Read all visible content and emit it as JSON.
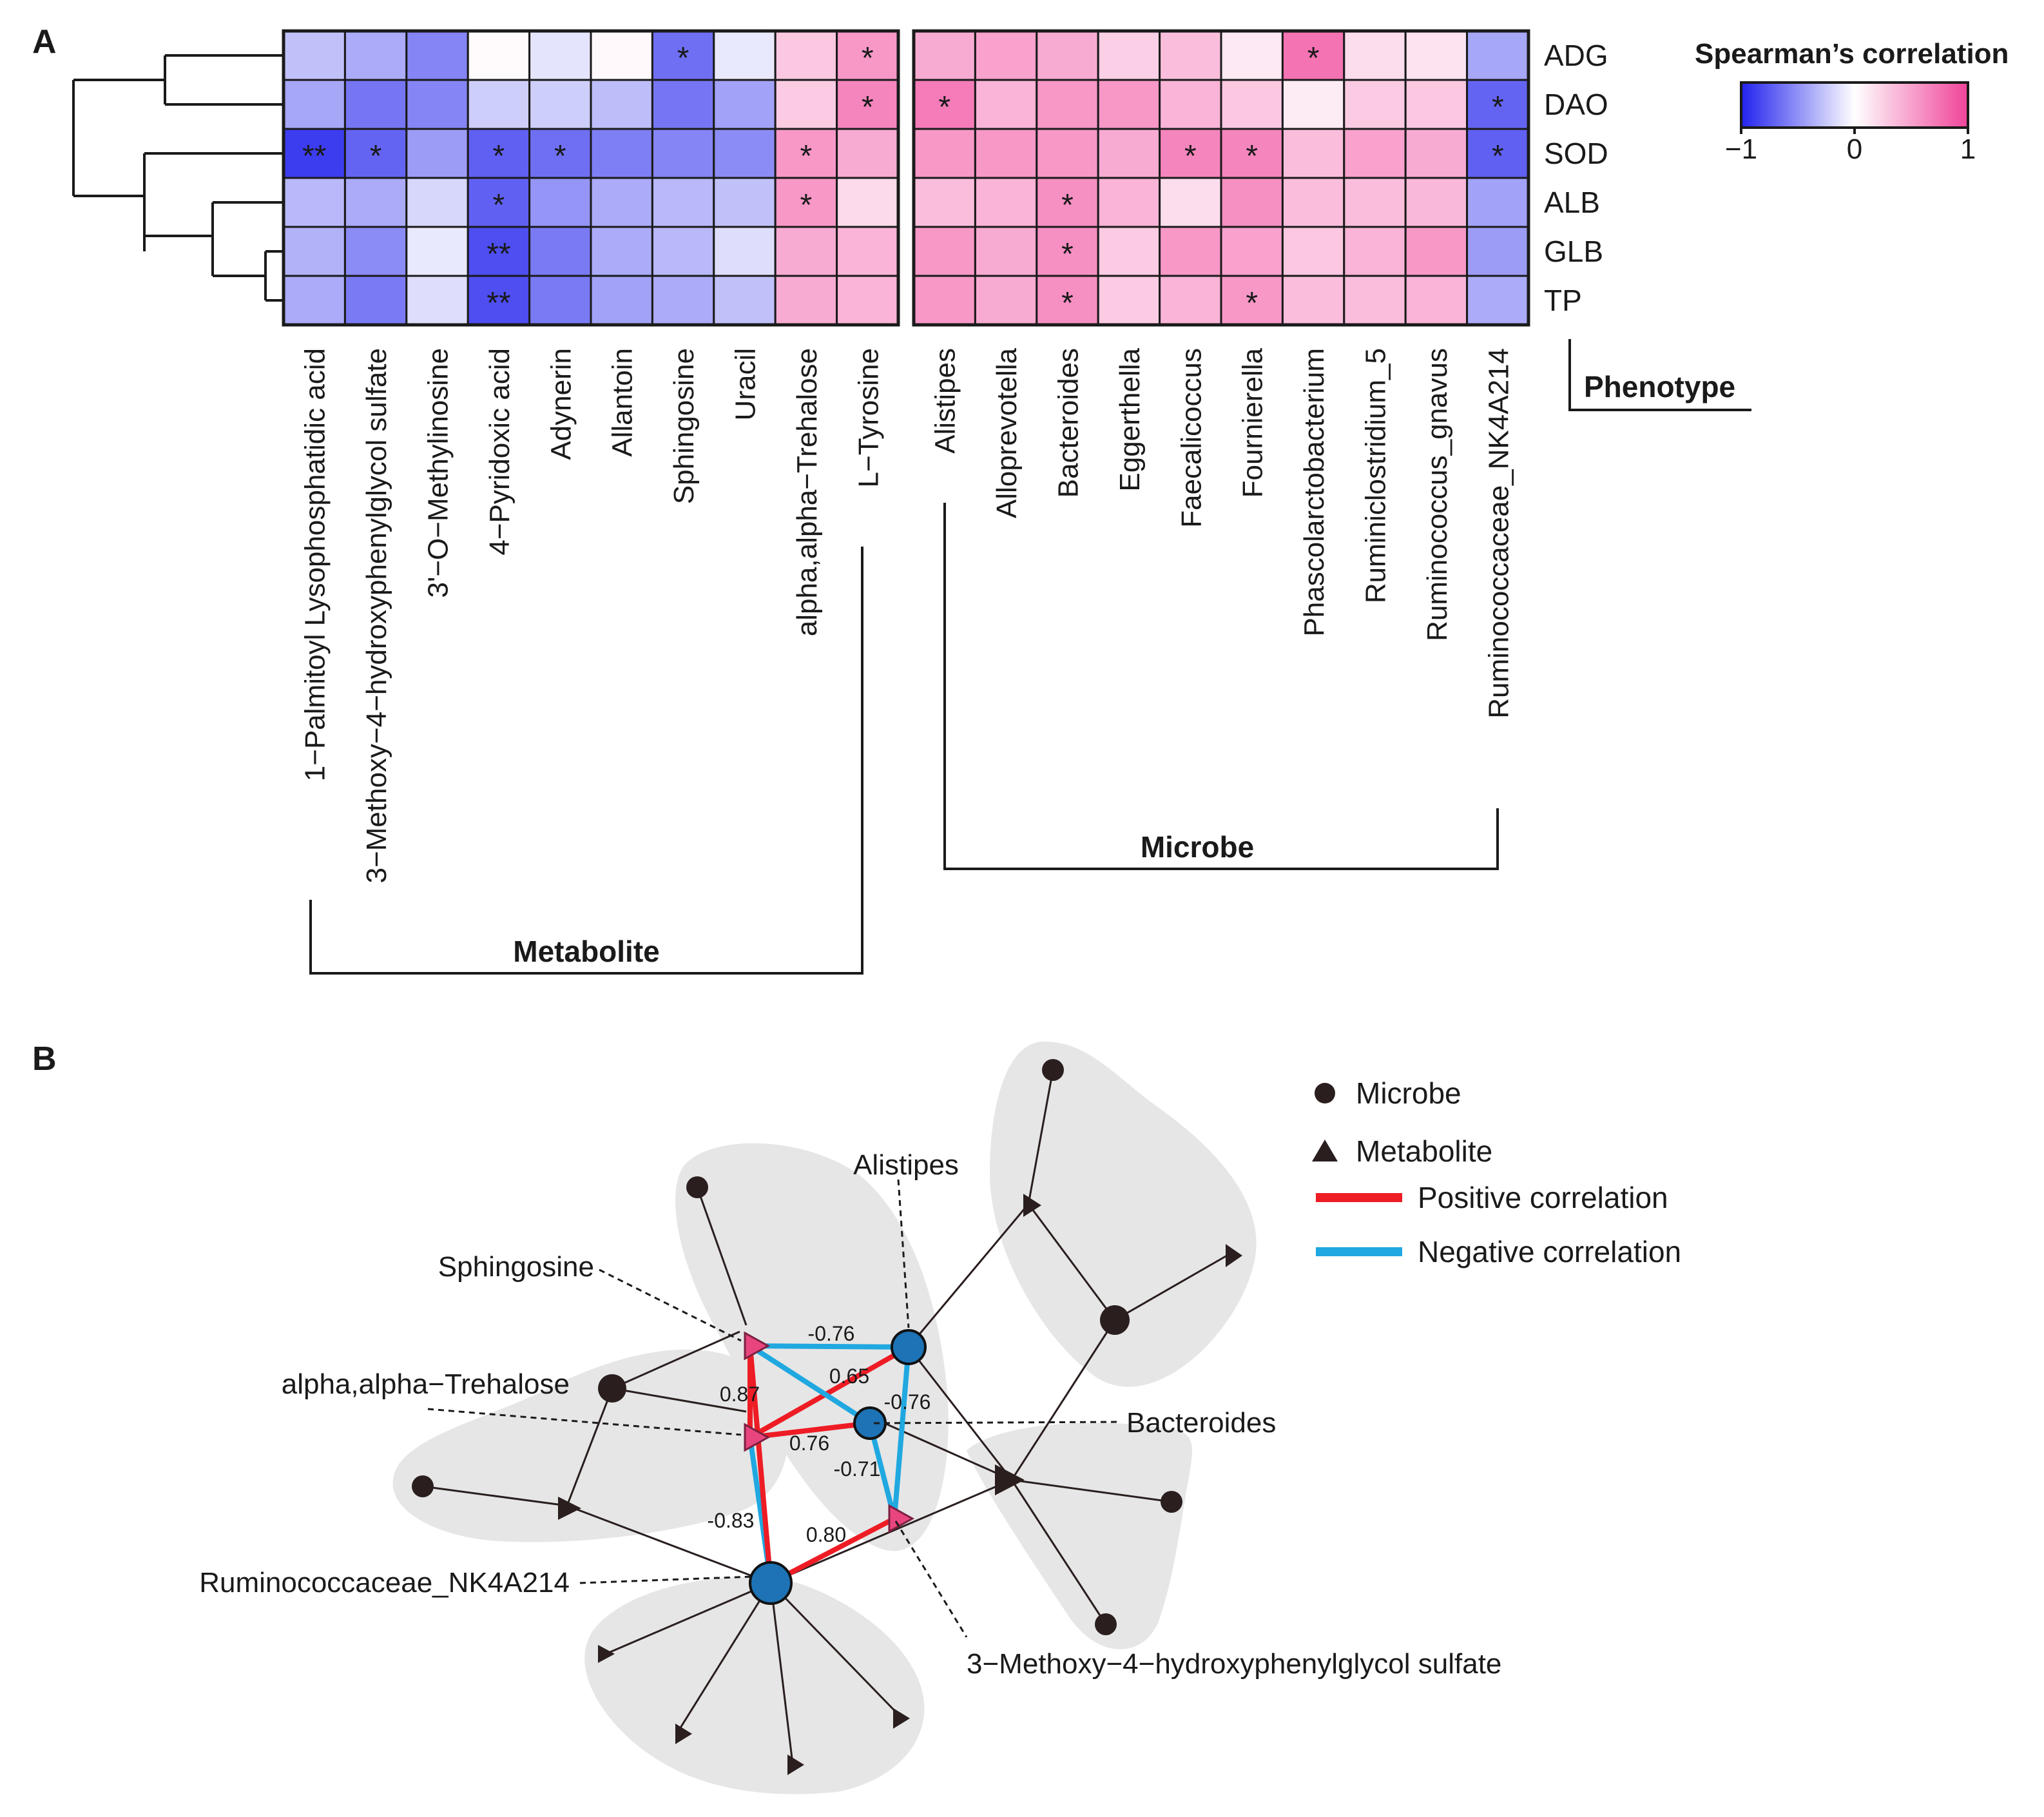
{
  "panel_labels": {
    "a": "A",
    "b": "B"
  },
  "chart_data": [
    {
      "type": "heatmap",
      "title": "",
      "rows": [
        "ADG",
        "DAO",
        "SOD",
        "ALB",
        "GLB",
        "TP"
      ],
      "columns_metabolite": [
        "1−Palmitoyl Lysophosphatidic acid",
        "3−Methoxy−4−hydroxyphenylglycol sulfate",
        "3'−O−Methylinosine",
        "4−Pyridoxic acid",
        "Adynerin",
        "Allantoin",
        "Sphingosine",
        "Uracil",
        "alpha,alpha−Trehalose",
        "L−Tyrosine"
      ],
      "columns_microbe": [
        "Alistipes",
        "Alloprevotella",
        "Bacteroides",
        "Eggerthella",
        "Faecalicoccus",
        "Fournierella",
        "Phascolarctobacterium",
        "Ruminiclostridium_5",
        "Ruminococcus_gnavus",
        "Ruminococcaceae_NK4A214"
      ],
      "values_metabolite": [
        [
          -0.28,
          -0.38,
          -0.55,
          0.02,
          -0.12,
          0.03,
          -0.65,
          -0.1,
          0.3,
          0.55
        ],
        [
          -0.4,
          -0.62,
          -0.55,
          -0.22,
          -0.22,
          -0.3,
          -0.62,
          -0.42,
          0.28,
          0.65
        ],
        [
          -0.88,
          -0.7,
          -0.45,
          -0.72,
          -0.65,
          -0.58,
          -0.55,
          -0.52,
          0.55,
          0.45
        ],
        [
          -0.32,
          -0.38,
          -0.18,
          -0.72,
          -0.48,
          -0.38,
          -0.32,
          -0.28,
          0.55,
          0.2
        ],
        [
          -0.35,
          -0.52,
          -0.1,
          -0.8,
          -0.6,
          -0.38,
          -0.32,
          -0.15,
          0.45,
          0.4
        ],
        [
          -0.38,
          -0.6,
          -0.15,
          -0.8,
          -0.6,
          -0.42,
          -0.38,
          -0.28,
          0.45,
          0.4
        ]
      ],
      "values_microbe": [
        [
          0.45,
          0.5,
          0.45,
          0.25,
          0.35,
          0.12,
          0.75,
          0.18,
          0.15,
          -0.4
        ],
        [
          0.7,
          0.4,
          0.55,
          0.55,
          0.4,
          0.3,
          0.1,
          0.28,
          0.3,
          -0.7
        ],
        [
          0.55,
          0.55,
          0.55,
          0.45,
          0.65,
          0.65,
          0.35,
          0.5,
          0.45,
          -0.72
        ],
        [
          0.35,
          0.4,
          0.6,
          0.4,
          0.18,
          0.6,
          0.35,
          0.35,
          0.38,
          -0.42
        ],
        [
          0.55,
          0.45,
          0.6,
          0.28,
          0.55,
          0.5,
          0.3,
          0.4,
          0.55,
          -0.45
        ],
        [
          0.55,
          0.45,
          0.6,
          0.28,
          0.4,
          0.55,
          0.35,
          0.35,
          0.4,
          -0.38
        ]
      ],
      "sig_metabolite": [
        [
          "",
          "",
          "",
          "",
          "",
          "",
          "*",
          "",
          "",
          "*"
        ],
        [
          "",
          "",
          "",
          "",
          "",
          "",
          "",
          "",
          "",
          "*"
        ],
        [
          "**",
          "*",
          "",
          "*",
          "*",
          "",
          "",
          "",
          "*",
          ""
        ],
        [
          "",
          "",
          "",
          "*",
          "",
          "",
          "",
          "",
          "*",
          ""
        ],
        [
          "",
          "",
          "",
          "**",
          "",
          "",
          "",
          "",
          "",
          ""
        ],
        [
          "",
          "",
          "",
          "**",
          "",
          "",
          "",
          "",
          "",
          ""
        ]
      ],
      "sig_microbe": [
        [
          "",
          "",
          "",
          "",
          "",
          "",
          "*",
          "",
          "",
          ""
        ],
        [
          "*",
          "",
          "",
          "",
          "",
          "",
          "",
          "",
          "",
          "*"
        ],
        [
          "",
          "",
          "",
          "",
          "*",
          "*",
          "",
          "",
          "",
          "*"
        ],
        [
          "",
          "",
          "*",
          "",
          "",
          "",
          "",
          "",
          "",
          ""
        ],
        [
          "",
          "",
          "*",
          "",
          "",
          "",
          "",
          "",
          "",
          ""
        ],
        [
          "",
          "",
          "*",
          "",
          "",
          "*",
          "",
          "",
          "",
          ""
        ]
      ],
      "group_labels": {
        "metabolite": "Metabolite",
        "microbe": "Microbe",
        "phenotype": "Phenotype"
      },
      "legend": {
        "title": "Spearman’s correlation",
        "ticks": [
          "−1",
          "0",
          "1"
        ],
        "range": [
          -1,
          1
        ],
        "colors": [
          "#2222ee",
          "#ffffff",
          "#f0449a"
        ]
      }
    },
    {
      "type": "network",
      "nodes": [
        {
          "id": "sphingosine",
          "label": "Sphingosine",
          "kind": "metabolite",
          "highlight": true
        },
        {
          "id": "trehalose",
          "label": "alpha,alpha−Trehalose",
          "kind": "metabolite",
          "highlight": true
        },
        {
          "id": "mhpg",
          "label": "3−Methoxy−4−hydroxyphenylglycol sulfate",
          "kind": "metabolite",
          "highlight": true
        },
        {
          "id": "alistipes",
          "label": "Alistipes",
          "kind": "microbe",
          "highlight": true
        },
        {
          "id": "bacteroides",
          "label": "Bacteroides",
          "kind": "microbe",
          "highlight": true
        },
        {
          "id": "nk4a214",
          "label": "Ruminococcaceae_NK4A214",
          "kind": "microbe",
          "highlight": true
        }
      ],
      "edges": [
        {
          "source": "sphingosine",
          "target": "alistipes",
          "weight": "-0.76",
          "sign": "negative"
        },
        {
          "source": "trehalose",
          "target": "alistipes",
          "weight": "0.65",
          "sign": "positive"
        },
        {
          "source": "sphingosine",
          "target": "mhpg",
          "weight": "-0.76",
          "sign": "negative"
        },
        {
          "source": "sphingosine",
          "target": "trehalose",
          "weight": "0.87",
          "sign": "positive"
        },
        {
          "source": "trehalose",
          "target": "bacteroides",
          "weight": "0.76",
          "sign": "positive"
        },
        {
          "source": "alistipes",
          "target": "mhpg",
          "weight": "-0.71",
          "sign": "negative"
        },
        {
          "source": "trehalose",
          "target": "nk4a214",
          "weight": "-0.83",
          "sign": "negative"
        },
        {
          "source": "sphingosine",
          "target": "nk4a214",
          "weight": "",
          "sign": "positive"
        },
        {
          "source": "nk4a214",
          "target": "mhpg",
          "weight": "0.80",
          "sign": "positive"
        }
      ],
      "legend": [
        {
          "label": "Microbe",
          "symbol": "circle"
        },
        {
          "label": "Metabolite",
          "symbol": "triangle"
        },
        {
          "label": "Positive correlation",
          "color": "#ee1c24"
        },
        {
          "label": "Negative correlation",
          "color": "#20a8e0"
        }
      ]
    }
  ]
}
